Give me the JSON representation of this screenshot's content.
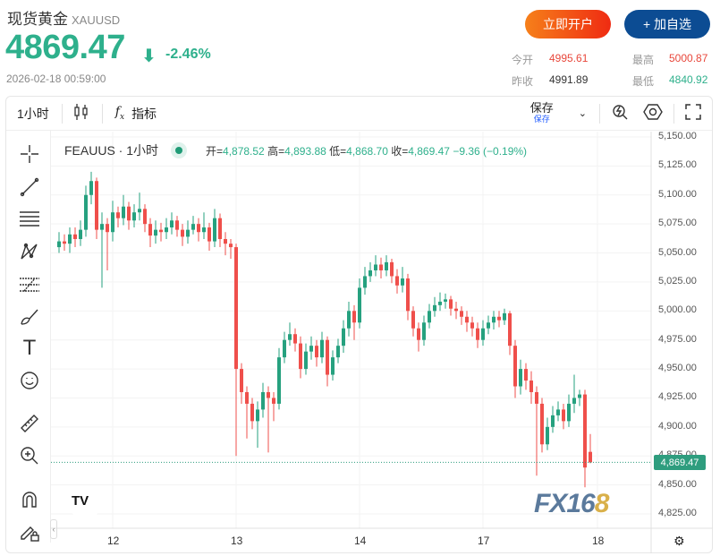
{
  "header": {
    "name": "现货黄金",
    "symbol": "XAUUSD",
    "price": "4869.47",
    "change": "-2.46%",
    "timestamp": "2026-02-18 00:59:00",
    "open_account": "立即开户",
    "add_watch": "+ 加自选"
  },
  "stats": [
    {
      "label": "今开",
      "value": "4995.61",
      "color": "red"
    },
    {
      "label": "最高",
      "value": "5000.87",
      "color": "red"
    },
    {
      "label": "昨收",
      "value": "4991.89",
      "color": "blk"
    },
    {
      "label": "最低",
      "value": "4840.92",
      "color": "grn"
    }
  ],
  "toolbar": {
    "interval": "1小时",
    "indicators": "指标",
    "save": "保存",
    "save_sub": "保存"
  },
  "legend": {
    "symbol": "FEAUUS · 1小时",
    "o_label": "开=",
    "o": "4,878.52",
    "h_label": "高=",
    "h": "4,893.88",
    "l_label": "低=",
    "l": "4,868.70",
    "c_label": "收=",
    "c": "4,869.47",
    "change": "−9.36 (−0.19%)"
  },
  "watermark": "FX168",
  "colors": {
    "up": "#26a17f",
    "down": "#ef4f4b",
    "accent": "#2eb08c"
  },
  "chart_data": {
    "type": "candlestick",
    "y_ticks": [
      "5,150.00",
      "5,125.00",
      "5,100.00",
      "5,075.00",
      "5,050.00",
      "5,025.00",
      "5,000.00",
      "4,975.00",
      "4,950.00",
      "4,925.00",
      "4,900.00",
      "4,875.00",
      "4,850.00",
      "4,825.00"
    ],
    "x_ticks": [
      "12",
      "13",
      "14",
      "17",
      "18"
    ],
    "ylim": [
      4825,
      5150
    ],
    "last_price": "4,869.47",
    "first_open": 5055,
    "close": [
      5060,
      5058,
      5066,
      5062,
      5070,
      5100,
      5112,
      5070,
      5075,
      5068,
      5085,
      5080,
      5090,
      5078,
      5085,
      5088,
      5075,
      5065,
      5070,
      5068,
      5072,
      5078,
      5070,
      5064,
      5070,
      5075,
      5068,
      5072,
      5060,
      5080,
      5062,
      5058,
      5055,
      4950,
      4930,
      4920,
      4905,
      4915,
      4930,
      4925,
      4920,
      4960,
      4975,
      4980,
      4972,
      4950,
      4965,
      4970,
      4960,
      4975,
      4945,
      4960,
      4970,
      4985,
      5000,
      4990,
      5020,
      5030,
      5035,
      5040,
      5035,
      5042,
      5030,
      5022,
      5028,
      5000,
      4985,
      4975,
      4990,
      5000,
      5005,
      5008,
      5010,
      5002,
      5000,
      4995,
      4990,
      4985,
      4975,
      4985,
      4990,
      4995,
      4992,
      4998,
      4970,
      4935,
      4950,
      4940,
      4930,
      4920,
      4885,
      4900,
      4910,
      4915,
      4905,
      4920,
      4925,
      4928,
      4865,
      4869.47
    ],
    "high": [
      5068,
      5066,
      5072,
      5072,
      5078,
      5108,
      5120,
      5115,
      5085,
      5080,
      5095,
      5090,
      5100,
      5094,
      5092,
      5102,
      5092,
      5080,
      5078,
      5076,
      5080,
      5085,
      5082,
      5075,
      5078,
      5082,
      5080,
      5085,
      5076,
      5088,
      5084,
      5068,
      5062,
      5058,
      4955,
      4935,
      4925,
      4922,
      4938,
      4935,
      4930,
      4968,
      4982,
      4990,
      4985,
      4978,
      4972,
      4978,
      4975,
      4982,
      4978,
      4966,
      4976,
      4992,
      5008,
      5005,
      5028,
      5038,
      5042,
      5048,
      5046,
      5048,
      5045,
      5036,
      5038,
      5032,
      5004,
      4990,
      4996,
      5006,
      5012,
      5016,
      5015,
      5013,
      5008,
      5004,
      5000,
      4995,
      4990,
      4992,
      4996,
      5000,
      5000,
      5002,
      5000,
      4975,
      4958,
      4955,
      4948,
      4935,
      4925,
      4908,
      4918,
      4922,
      4920,
      4928,
      4945,
      4932,
      4932,
      4893.88
    ],
    "low": [
      5050,
      5052,
      5050,
      5055,
      5056,
      5064,
      5092,
      5062,
      5020,
      5035,
      5060,
      5072,
      5074,
      5070,
      5072,
      5078,
      5068,
      5055,
      5058,
      5060,
      5062,
      5066,
      5064,
      5056,
      5058,
      5066,
      5060,
      5062,
      5052,
      5055,
      5055,
      5048,
      5045,
      4875,
      4920,
      4890,
      4898,
      4882,
      4908,
      4878,
      4905,
      4915,
      4955,
      4970,
      4965,
      4942,
      4945,
      4958,
      4952,
      4955,
      4935,
      4940,
      4955,
      4964,
      4978,
      4975,
      4985,
      5014,
      5025,
      5030,
      5028,
      5030,
      5024,
      5015,
      5016,
      4992,
      4978,
      4965,
      4970,
      4985,
      4995,
      5000,
      5002,
      4996,
      4993,
      4988,
      4982,
      4978,
      4968,
      4970,
      4980,
      4984,
      4986,
      4988,
      4962,
      4925,
      4928,
      4932,
      4920,
      4858,
      4878,
      4880,
      4895,
      4905,
      4898,
      4900,
      4912,
      4918,
      4848,
      4868.7
    ],
    "last_open": 4878.52
  }
}
